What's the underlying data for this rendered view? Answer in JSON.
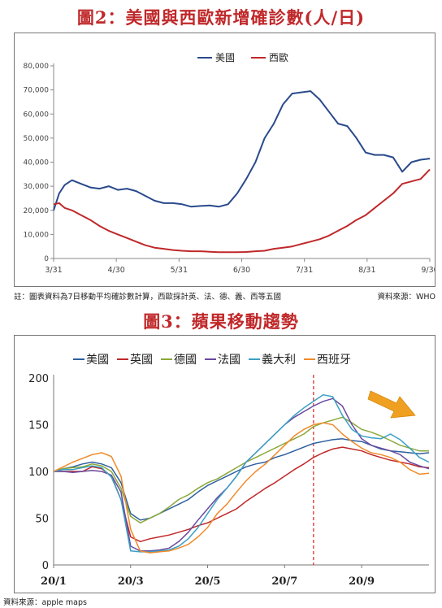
{
  "fig2": {
    "title": "圖2：美國與西歐新增確診數(人/日)",
    "note": "註：圖表資料為7日移動平均確診數計算，西歐採計英、法、德、義、西等五國",
    "source": "資料來源：WHO"
  },
  "fig3": {
    "title": "圖3：蘋果移動趨勢",
    "source": "資料來源：apple maps"
  },
  "colors": {
    "title": "#c0282a",
    "us": "#2a4a8c",
    "we": "#c0282a",
    "vline": "#e0201a",
    "arrow": "#f0a020"
  },
  "chart_data": [
    {
      "type": "line",
      "title": "",
      "xlabel": "",
      "ylabel": "",
      "x_ticks": [
        "3/31",
        "4/30",
        "5/31",
        "6/30",
        "7/31",
        "8/31",
        "9/30"
      ],
      "x": [
        0,
        3,
        6,
        10,
        15,
        20,
        25,
        30,
        35,
        40,
        45,
        50,
        55,
        60,
        65,
        70,
        75,
        80,
        85,
        90,
        95,
        100,
        105,
        110,
        115,
        120,
        125,
        130,
        135,
        140,
        145,
        150,
        155,
        160,
        165,
        170,
        175,
        180,
        185,
        190,
        195,
        200,
        205
      ],
      "y_ticks": [
        "0",
        "10,000",
        "20,000",
        "30,000",
        "40,000",
        "50,000",
        "60,000",
        "70,000",
        "80,000"
      ],
      "ylim": [
        0,
        80000
      ],
      "grid": false,
      "legend": "top-center",
      "series": [
        {
          "name": "美國",
          "values": [
            20000,
            27000,
            30500,
            32500,
            31000,
            29500,
            29000,
            30000,
            28500,
            29000,
            28000,
            26000,
            24000,
            23000,
            23000,
            22500,
            21500,
            21800,
            22000,
            21500,
            22500,
            27000,
            33000,
            40000,
            50000,
            56000,
            64000,
            68500,
            69000,
            69500,
            66000,
            61000,
            56000,
            55000,
            50000,
            44000,
            43000,
            43000,
            42000,
            36000,
            40000,
            41000,
            41500
          ]
        },
        {
          "name": "西歐",
          "values": [
            22500,
            23000,
            21000,
            20000,
            18000,
            16000,
            13500,
            11500,
            10000,
            8500,
            7000,
            5500,
            4500,
            4000,
            3500,
            3200,
            3000,
            3000,
            2800,
            2600,
            2600,
            2600,
            2700,
            3000,
            3200,
            4000,
            4500,
            5000,
            6000,
            7000,
            8000,
            9500,
            11500,
            13500,
            16000,
            18000,
            21000,
            24000,
            27000,
            31000,
            32000,
            33000,
            37000
          ]
        }
      ]
    },
    {
      "type": "line",
      "title": "",
      "xlabel": "",
      "ylabel": "",
      "x_ticks": [
        "20/1",
        "20/3",
        "20/5",
        "20/7",
        "20/9"
      ],
      "x": [
        0,
        0.25,
        0.5,
        0.75,
        1,
        1.25,
        1.5,
        1.75,
        2,
        2.25,
        2.5,
        2.75,
        3,
        3.25,
        3.5,
        3.75,
        4,
        4.25,
        4.5,
        4.75,
        5,
        5.25,
        5.5,
        5.75,
        6,
        6.25,
        6.5,
        6.75,
        7,
        7.25,
        7.5,
        7.75,
        8,
        8.25,
        8.5,
        8.75,
        9,
        9.25,
        9.5,
        9.75
      ],
      "y_ticks": [
        "0",
        "50",
        "100",
        "150",
        "200"
      ],
      "ylim": [
        0,
        200
      ],
      "vline_x": 6.75,
      "grid": false,
      "legend": "top",
      "series": [
        {
          "name": "美國",
          "values": [
            100,
            103,
            105,
            108,
            110,
            108,
            104,
            88,
            55,
            48,
            50,
            55,
            60,
            65,
            70,
            78,
            85,
            90,
            95,
            100,
            105,
            108,
            110,
            115,
            118,
            122,
            126,
            130,
            132,
            134,
            135,
            133,
            132,
            128,
            124,
            122,
            121,
            120,
            119,
            120
          ]
        },
        {
          "name": "英國",
          "values": [
            100,
            100,
            100,
            100,
            105,
            103,
            95,
            70,
            30,
            25,
            28,
            30,
            32,
            35,
            38,
            42,
            45,
            50,
            55,
            60,
            68,
            75,
            82,
            88,
            95,
            102,
            108,
            115,
            120,
            124,
            126,
            124,
            122,
            118,
            115,
            112,
            110,
            108,
            105,
            104
          ]
        },
        {
          "name": "德國",
          "values": [
            100,
            103,
            104,
            105,
            108,
            106,
            100,
            82,
            52,
            45,
            50,
            55,
            62,
            70,
            75,
            82,
            88,
            92,
            98,
            104,
            110,
            115,
            120,
            125,
            130,
            135,
            140,
            148,
            152,
            155,
            158,
            152,
            145,
            142,
            138,
            133,
            128,
            125,
            122,
            122
          ]
        },
        {
          "name": "法國",
          "values": [
            100,
            100,
            99,
            100,
            101,
            100,
            96,
            78,
            20,
            15,
            15,
            16,
            18,
            25,
            35,
            48,
            60,
            72,
            82,
            95,
            110,
            120,
            130,
            140,
            150,
            158,
            164,
            170,
            175,
            178,
            170,
            150,
            135,
            128,
            125,
            122,
            118,
            110,
            106,
            103
          ]
        },
        {
          "name": "義大利",
          "values": [
            100,
            102,
            102,
            104,
            106,
            104,
            94,
            70,
            15,
            14,
            14,
            15,
            16,
            20,
            28,
            40,
            55,
            70,
            82,
            95,
            110,
            120,
            130,
            140,
            150,
            160,
            168,
            175,
            182,
            180,
            160,
            145,
            138,
            136,
            135,
            140,
            134,
            125,
            115,
            110
          ]
        },
        {
          "name": "西班牙",
          "values": [
            100,
            105,
            110,
            114,
            118,
            120,
            116,
            95,
            38,
            15,
            13,
            14,
            15,
            18,
            22,
            30,
            40,
            55,
            65,
            78,
            90,
            100,
            108,
            118,
            128,
            138,
            145,
            150,
            152,
            150,
            140,
            132,
            125,
            120,
            118,
            115,
            110,
            102,
            97,
            98
          ]
        }
      ]
    }
  ]
}
